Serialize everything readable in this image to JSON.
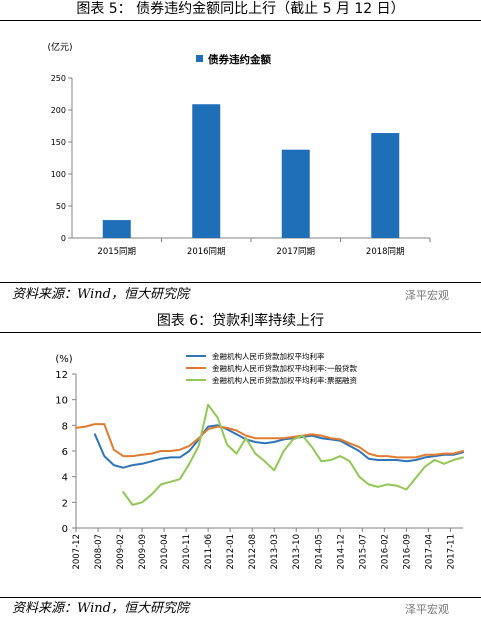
{
  "figure1": {
    "title": "图表 5：  债券违约金额同比上行（截止 5 月 12 日）",
    "source": "资料来源：Wind，恒大研究院",
    "watermark": "泽平宏观"
  },
  "figure2": {
    "title": "图表 6：贷款利率持续上行",
    "source": "资料来源：Wind，恒大研究院",
    "watermark": "泽平宏观"
  },
  "colors": {
    "bar": "#1f6fb8",
    "line_avg": "#2f75b5",
    "line_general": "#e07b30",
    "line_bill": "#92c757"
  },
  "chart_data": [
    {
      "type": "bar",
      "title": "",
      "ylabel": "(亿元)",
      "categories": [
        "2015同期",
        "2016同期",
        "2017同期",
        "2018同期"
      ],
      "series": [
        {
          "name": "债券违约金额",
          "values": [
            28,
            209,
            138,
            164
          ]
        }
      ],
      "ylim": [
        0,
        250
      ],
      "yticks": [
        0,
        50,
        100,
        150,
        200,
        250
      ],
      "legend": "top-center",
      "grid": false
    },
    {
      "type": "line",
      "title": "",
      "ylabel": "(%)",
      "ylim": [
        0,
        12
      ],
      "yticks": [
        0,
        2,
        4,
        6,
        8,
        10,
        12
      ],
      "x_range": [
        "2007-12",
        "2018-03"
      ],
      "xticks": [
        "2007-12",
        "2008-07",
        "2009-02",
        "2009-09",
        "2010-04",
        "2010-11",
        "2011-06",
        "2012-01",
        "2012-08",
        "2013-03",
        "2013-10",
        "2014-05",
        "2014-12",
        "2015-07",
        "2016-02",
        "2016-09",
        "2017-04",
        "2017-11"
      ],
      "legend": "top-right",
      "grid": false,
      "series": [
        {
          "name": "金融机构人民币贷款加权平均利率",
          "x": [
            "2008-06",
            "2008-09",
            "2008-12",
            "2009-03",
            "2009-06",
            "2009-09",
            "2009-12",
            "2010-03",
            "2010-06",
            "2010-09",
            "2010-12",
            "2011-03",
            "2011-06",
            "2011-09",
            "2011-12",
            "2012-03",
            "2012-06",
            "2012-09",
            "2012-12",
            "2013-03",
            "2013-06",
            "2013-09",
            "2013-12",
            "2014-03",
            "2014-06",
            "2014-09",
            "2014-12",
            "2015-03",
            "2015-06",
            "2015-09",
            "2015-12",
            "2016-03",
            "2016-06",
            "2016-09",
            "2016-12",
            "2017-03",
            "2017-06",
            "2017-09",
            "2017-12",
            "2018-03"
          ],
          "values": [
            7.3,
            5.6,
            4.9,
            4.7,
            4.9,
            5.0,
            5.2,
            5.4,
            5.5,
            5.5,
            6.0,
            6.9,
            7.9,
            8.0,
            7.7,
            7.3,
            6.9,
            6.7,
            6.6,
            6.7,
            6.9,
            7.0,
            7.1,
            7.2,
            7.0,
            6.9,
            6.8,
            6.4,
            6.0,
            5.4,
            5.3,
            5.3,
            5.3,
            5.2,
            5.3,
            5.5,
            5.6,
            5.7,
            5.7,
            5.9
          ]
        },
        {
          "name": "金融机构人民币贷款加权平均利率:一般贷款",
          "x": [
            "2007-12",
            "2008-03",
            "2008-06",
            "2008-09",
            "2008-12",
            "2009-03",
            "2009-06",
            "2009-09",
            "2009-12",
            "2010-03",
            "2010-06",
            "2010-09",
            "2010-12",
            "2011-03",
            "2011-06",
            "2011-09",
            "2011-12",
            "2012-03",
            "2012-06",
            "2012-09",
            "2012-12",
            "2013-03",
            "2013-06",
            "2013-09",
            "2013-12",
            "2014-03",
            "2014-06",
            "2014-09",
            "2014-12",
            "2015-03",
            "2015-06",
            "2015-09",
            "2015-12",
            "2016-03",
            "2016-06",
            "2016-09",
            "2016-12",
            "2017-03",
            "2017-06",
            "2017-09",
            "2017-12",
            "2018-03"
          ],
          "values": [
            7.8,
            7.9,
            8.1,
            8.1,
            6.1,
            5.6,
            5.6,
            5.7,
            5.8,
            6.0,
            6.0,
            6.1,
            6.4,
            7.0,
            7.7,
            7.9,
            7.8,
            7.6,
            7.2,
            7.0,
            7.0,
            7.0,
            7.0,
            7.1,
            7.2,
            7.3,
            7.2,
            7.0,
            6.9,
            6.6,
            6.3,
            5.8,
            5.6,
            5.6,
            5.5,
            5.5,
            5.5,
            5.7,
            5.7,
            5.8,
            5.8,
            6.0
          ]
        },
        {
          "name": "金融机构人民币贷款加权平均利率:票据融资",
          "x": [
            "2009-03",
            "2009-06",
            "2009-09",
            "2009-12",
            "2010-03",
            "2010-06",
            "2010-09",
            "2010-12",
            "2011-03",
            "2011-06",
            "2011-09",
            "2011-12",
            "2012-03",
            "2012-06",
            "2012-09",
            "2012-12",
            "2013-03",
            "2013-06",
            "2013-09",
            "2013-12",
            "2014-03",
            "2014-06",
            "2014-09",
            "2014-12",
            "2015-03",
            "2015-06",
            "2015-09",
            "2015-12",
            "2016-03",
            "2016-06",
            "2016-09",
            "2016-12",
            "2017-03",
            "2017-06",
            "2017-09",
            "2017-12",
            "2018-03"
          ],
          "values": [
            2.8,
            1.8,
            2.0,
            2.6,
            3.4,
            3.6,
            3.8,
            5.0,
            6.4,
            9.6,
            8.6,
            6.5,
            5.8,
            7.0,
            5.8,
            5.2,
            4.5,
            6.0,
            6.9,
            7.2,
            6.3,
            5.2,
            5.3,
            5.6,
            5.2,
            4.0,
            3.4,
            3.2,
            3.4,
            3.3,
            3.0,
            3.9,
            4.8,
            5.3,
            5.0,
            5.3,
            5.5
          ]
        }
      ]
    }
  ]
}
